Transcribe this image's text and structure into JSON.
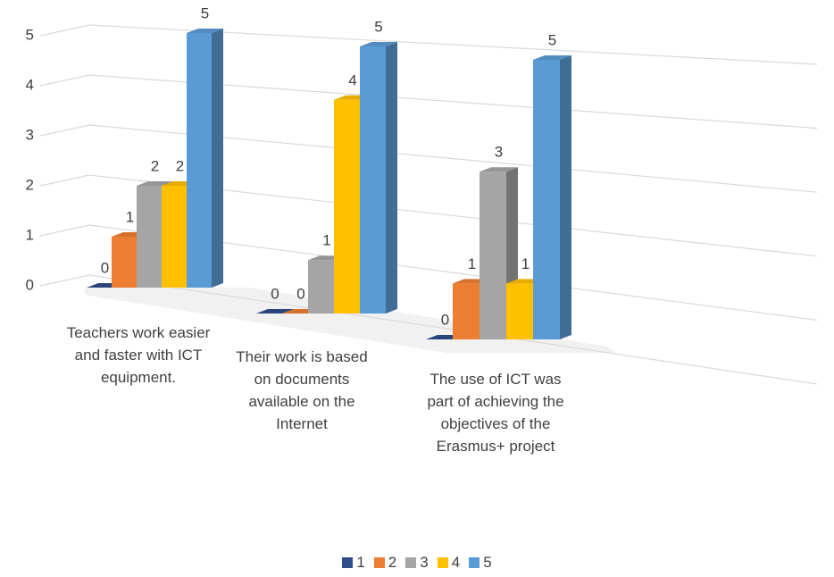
{
  "chart_data": {
    "type": "bar3d",
    "categories": [
      "Teachers work easier and faster with ICT equipment.",
      "Their work is based on documents available on the Internet",
      "The use of ICT was part of achieving the objectives of the Erasmus+ project"
    ],
    "series": [
      {
        "name": "1",
        "color": "#2e4d8a",
        "values": [
          0,
          0,
          0
        ]
      },
      {
        "name": "2",
        "color": "#ed7d31",
        "values": [
          1,
          0,
          1
        ]
      },
      {
        "name": "3",
        "color": "#a5a5a5",
        "values": [
          2,
          1,
          3
        ]
      },
      {
        "name": "4",
        "color": "#ffc000",
        "values": [
          2,
          4,
          1
        ]
      },
      {
        "name": "5",
        "color": "#5b9bd5",
        "values": [
          5,
          5,
          5
        ]
      }
    ],
    "ylim": [
      0,
      5
    ],
    "yticks": [
      0,
      1,
      2,
      3,
      4,
      5
    ],
    "grid": true,
    "legend": "bottom"
  }
}
